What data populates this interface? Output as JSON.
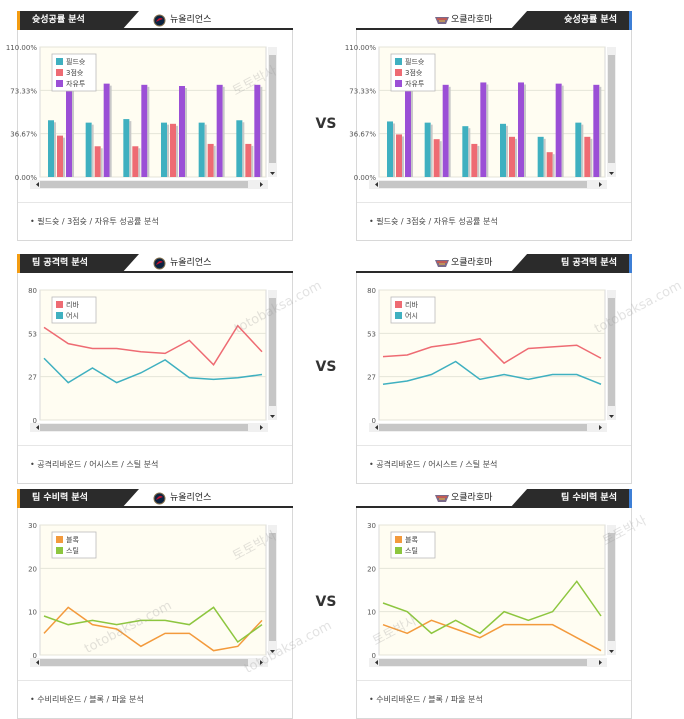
{
  "sections": [
    {
      "id": "shooting",
      "left": {
        "title": "슛성공률 분석",
        "team": "뉴올리언스"
      },
      "right": {
        "title": "슛성공률 분석",
        "team": "오클라호마"
      },
      "vs": "VS",
      "caption": "• 필드슛 / 3점슛 / 자유투 성공률 분석"
    },
    {
      "id": "offense",
      "left": {
        "title": "팀 공격력 분석",
        "team": "뉴올리언스"
      },
      "right": {
        "title": "팀 공격력 분석",
        "team": "오클라호마"
      },
      "vs": "VS",
      "caption": "• 공격리바운드 / 어시스트 / 스틸 분석"
    },
    {
      "id": "defense",
      "left": {
        "title": "팀 수비력 분석",
        "team": "뉴올리언스"
      },
      "right": {
        "title": "팀 수비력 분석",
        "team": "오클라호마"
      },
      "vs": "VS",
      "caption": "• 수비리바운드 / 블록 / 파울 분석"
    }
  ],
  "watermark": [
    "토토박사",
    "totobaksa.com"
  ],
  "chart_data": [
    {
      "type": "bar",
      "panel": "shooting-left",
      "yticks": [
        "110.00%",
        "73.33%",
        "36.67%",
        "0.00%"
      ],
      "ylim": [
        0,
        110
      ],
      "series": [
        {
          "name": "필드슛",
          "color": "#3fb0c0",
          "values": [
            48,
            46,
            49,
            46,
            46,
            48
          ]
        },
        {
          "name": "3점슛",
          "color": "#ee6b73",
          "values": [
            35,
            26,
            26,
            45,
            28,
            28
          ]
        },
        {
          "name": "자유투",
          "color": "#9b4fd6",
          "values": [
            79,
            79,
            78,
            77,
            78,
            78
          ]
        }
      ]
    },
    {
      "type": "bar",
      "panel": "shooting-right",
      "yticks": [
        "110.00%",
        "73.33%",
        "36.67%",
        "0.00%"
      ],
      "ylim": [
        0,
        110
      ],
      "series": [
        {
          "name": "필드슛",
          "color": "#3fb0c0",
          "values": [
            47,
            46,
            43,
            45,
            34,
            46
          ]
        },
        {
          "name": "3점슛",
          "color": "#ee6b73",
          "values": [
            36,
            32,
            28,
            34,
            21,
            34
          ]
        },
        {
          "name": "자유투",
          "color": "#9b4fd6",
          "values": [
            82,
            78,
            80,
            80,
            79,
            78
          ]
        }
      ]
    },
    {
      "type": "line",
      "panel": "offense-left",
      "yticks": [
        "80",
        "53",
        "27",
        "0"
      ],
      "ylim": [
        0,
        80
      ],
      "series": [
        {
          "name": "리바",
          "color": "#ee6b73",
          "values": [
            57,
            47,
            44,
            44,
            42,
            41,
            49,
            34,
            58,
            42
          ]
        },
        {
          "name": "어시",
          "color": "#3fb0c0",
          "values": [
            38,
            23,
            32,
            23,
            29,
            37,
            26,
            25,
            26,
            28
          ]
        }
      ]
    },
    {
      "type": "line",
      "panel": "offense-right",
      "yticks": [
        "80",
        "53",
        "27",
        "0"
      ],
      "ylim": [
        0,
        80
      ],
      "series": [
        {
          "name": "리바",
          "color": "#ee6b73",
          "values": [
            39,
            40,
            45,
            47,
            50,
            35,
            44,
            45,
            46,
            38
          ]
        },
        {
          "name": "어시",
          "color": "#3fb0c0",
          "values": [
            22,
            24,
            28,
            36,
            25,
            28,
            25,
            28,
            28,
            22
          ]
        }
      ]
    },
    {
      "type": "line",
      "panel": "defense-left",
      "yticks": [
        "30",
        "20",
        "10",
        "0"
      ],
      "ylim": [
        0,
        30
      ],
      "series": [
        {
          "name": "블록",
          "color": "#f39a3c",
          "values": [
            5,
            11,
            7,
            6,
            2,
            5,
            5,
            1,
            2,
            8
          ]
        },
        {
          "name": "스틸",
          "color": "#8dc63f",
          "values": [
            9,
            7,
            8,
            7,
            8,
            8,
            7,
            11,
            3,
            7
          ]
        }
      ]
    },
    {
      "type": "line",
      "panel": "defense-right",
      "yticks": [
        "30",
        "20",
        "10",
        "0"
      ],
      "ylim": [
        0,
        30
      ],
      "series": [
        {
          "name": "블록",
          "color": "#f39a3c",
          "values": [
            7,
            5,
            8,
            6,
            4,
            7,
            7,
            7,
            4,
            1
          ]
        },
        {
          "name": "스틸",
          "color": "#8dc63f",
          "values": [
            12,
            10,
            5,
            8,
            5,
            10,
            8,
            10,
            17,
            9
          ]
        }
      ]
    }
  ]
}
